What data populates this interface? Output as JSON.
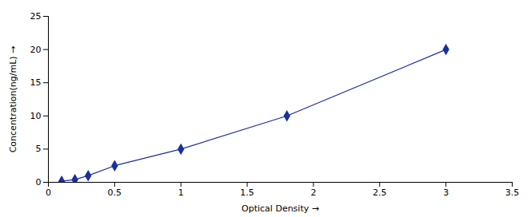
{
  "chart_data": {
    "type": "line",
    "x": [
      0.1,
      0.2,
      0.3,
      0.5,
      1.0,
      1.8,
      3.0
    ],
    "values": [
      0.16,
      0.4,
      1.0,
      2.5,
      5.0,
      10.0,
      20.0
    ],
    "xlabel": "Optical Density",
    "ylabel": "Concentration(ng/mL)",
    "xlim": [
      0,
      3.5
    ],
    "ylim": [
      0,
      25
    ],
    "xticks": [
      0,
      0.5,
      1,
      1.5,
      2,
      2.5,
      3,
      3.5
    ],
    "yticks": [
      0,
      5,
      10,
      15,
      20,
      25
    ],
    "color": "#1a2f9e",
    "marker": "diamond",
    "grid": false
  }
}
